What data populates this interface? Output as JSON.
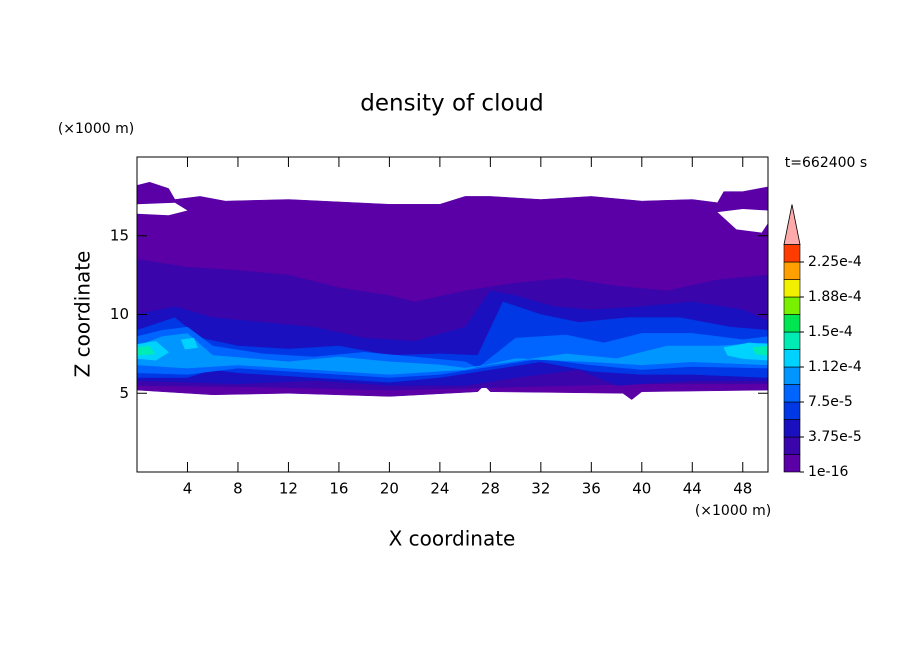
{
  "chart_data": {
    "type": "contour",
    "title": "density of cloud",
    "x_label": "X coordinate",
    "y_label": "Z coordinate",
    "x_unit": "(×1000 m)",
    "y_unit": "(×1000 m)",
    "time_label": "t=662400 s",
    "xlim": [
      0,
      50
    ],
    "xticks": [
      4,
      8,
      12,
      16,
      20,
      24,
      28,
      32,
      36,
      40,
      44,
      48
    ],
    "ylim": [
      0,
      20
    ],
    "yticks": [
      5,
      10,
      15
    ],
    "levels": [
      1e-16,
      1.875e-05,
      3.75e-05,
      5.625e-05,
      7.5e-05,
      9.375e-05,
      0.0001125,
      0.00013125,
      0.00015,
      0.00016875,
      0.0001875,
      0.00020625,
      0.000225,
      0.00024375
    ],
    "colorbar_ticks": [
      {
        "value": 1e-16,
        "label": "1e-16"
      },
      {
        "value": 3.75e-05,
        "label": "3.75e-5"
      },
      {
        "value": 7.5e-05,
        "label": "7.5e-5"
      },
      {
        "value": 0.0001125,
        "label": "1.12e-4"
      },
      {
        "value": 0.00015,
        "label": "1.5e-4"
      },
      {
        "value": 0.0001875,
        "label": "1.88e-4"
      },
      {
        "value": 0.000225,
        "label": "2.25e-4"
      }
    ],
    "colors": [
      "#5a00a6",
      "#3a06ac",
      "#1a10c0",
      "#0038e6",
      "#0064ff",
      "#0096ff",
      "#00d2ff",
      "#00ecb4",
      "#00e650",
      "#78f000",
      "#f0f000",
      "#ffa000",
      "#ff3c00"
    ],
    "overflow_color": "#ffaaaa"
  }
}
